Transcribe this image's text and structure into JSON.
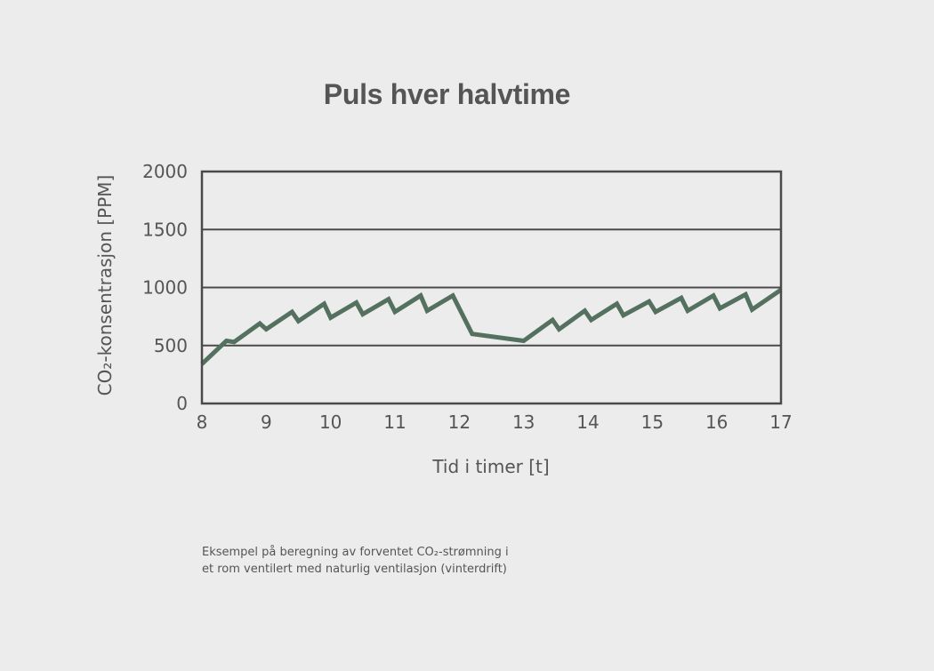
{
  "chart_data": {
    "type": "line",
    "title": "Puls hver halvtime",
    "xlabel": "Tid i timer [t]",
    "ylabel": "CO₂-konsentrasjon [PPM]",
    "xlim": [
      8,
      17
    ],
    "ylim": [
      0,
      2000
    ],
    "x_ticks": [
      "8",
      "9",
      "10",
      "11",
      "12",
      "13",
      "14",
      "15",
      "16",
      "17"
    ],
    "y_ticks": [
      "0",
      "500",
      "1000",
      "1500",
      "2000"
    ],
    "grid": "horizontal",
    "line_color": "#54705f",
    "series": [
      {
        "x": [
          8.0,
          8.38,
          8.5,
          8.9,
          9.0,
          9.4,
          9.5,
          9.9,
          10.0,
          10.4,
          10.5,
          10.9,
          11.0,
          11.4,
          11.5,
          11.9,
          12.2,
          13.0,
          13.45,
          13.55,
          13.95,
          14.05,
          14.45,
          14.55,
          14.95,
          15.05,
          15.45,
          15.55,
          15.95,
          16.05,
          16.45,
          16.55,
          17.0
        ],
        "y": [
          340,
          540,
          530,
          690,
          640,
          790,
          710,
          860,
          740,
          870,
          770,
          900,
          790,
          930,
          800,
          930,
          600,
          540,
          720,
          640,
          800,
          720,
          860,
          760,
          880,
          790,
          910,
          800,
          930,
          820,
          940,
          810,
          980
        ]
      }
    ]
  },
  "caption": {
    "line1": "Eksempel på beregning av forventet CO₂-strømning i",
    "line2": "et rom ventilert med naturlig ventilasjon (vinterdrift)"
  }
}
